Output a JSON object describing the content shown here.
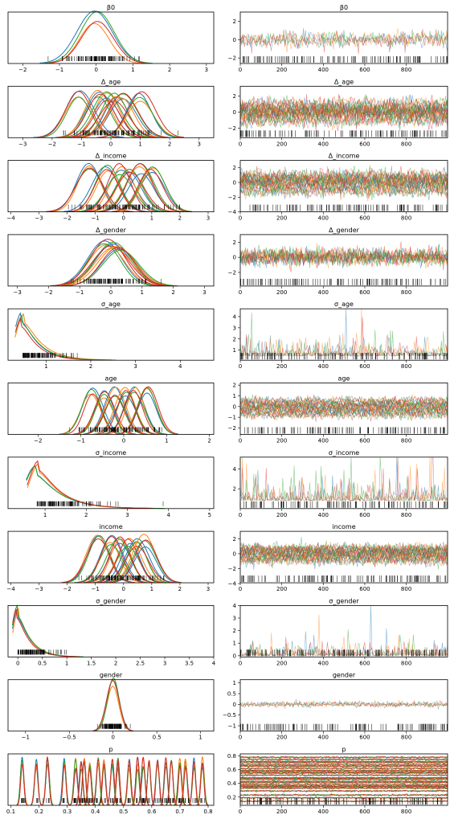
{
  "chart_data": {
    "type": "line",
    "title": "",
    "grid": false,
    "colors": [
      "#1f77b4",
      "#ff7f0e",
      "#2ca02c",
      "#d62728"
    ],
    "chains": 4,
    "draws_range": [
      0,
      999
    ],
    "trace_xticks": [
      0,
      200,
      400,
      600,
      800
    ],
    "rows": [
      {
        "name": "β0",
        "n": 1,
        "xlim": [
          -2.4,
          3.2
        ],
        "ylim": [
          0,
          0.46
        ],
        "xticks": [
          -2,
          -1,
          0,
          1,
          2,
          3
        ],
        "modes": [
          0.0
        ],
        "sd": 0.45,
        "trace_ylim": [
          -2.6,
          3.0
        ],
        "trace_yticks": [
          -2,
          0,
          2
        ],
        "skew": 0
      },
      {
        "name": "Δ_age",
        "n": 6,
        "xlim": [
          -3.5,
          3.5
        ],
        "ylim": [
          0,
          0.52
        ],
        "xticks": [
          -3,
          -2,
          -1,
          0,
          1,
          2,
          3
        ],
        "modes": [
          -1.1,
          -0.4,
          -0.1,
          0.15,
          0.4,
          1.0
        ],
        "sd": 0.45,
        "trace_ylim": [
          -3.2,
          3.2
        ],
        "trace_yticks": [
          -2,
          0,
          2
        ],
        "skew": 0
      },
      {
        "name": "Δ_income",
        "n": 6,
        "xlim": [
          -4.1,
          3.2
        ],
        "ylim": [
          0,
          0.52
        ],
        "xticks": [
          -4,
          -3,
          -2,
          -1,
          0,
          1,
          2,
          3
        ],
        "modes": [
          -1.2,
          -0.6,
          -0.1,
          0.2,
          0.6,
          1.0
        ],
        "sd": 0.45,
        "trace_ylim": [
          -4.0,
          3.0
        ],
        "trace_yticks": [
          -4,
          -2,
          0,
          2
        ],
        "skew": 0
      },
      {
        "name": "Δ_gender",
        "n": 3,
        "xlim": [
          -3.3,
          3.3
        ],
        "ylim": [
          0,
          0.46
        ],
        "xticks": [
          -3,
          -2,
          -1,
          0,
          1,
          2,
          3
        ],
        "modes": [
          -0.15,
          0.05,
          0.25
        ],
        "sd": 0.55,
        "trace_ylim": [
          -3.8,
          3.0
        ],
        "trace_yticks": [
          -2,
          0,
          2
        ],
        "skew": 0
      },
      {
        "name": "σ_age",
        "n": 1,
        "xlim": [
          0.15,
          4.75
        ],
        "ylim": [
          0,
          1.8
        ],
        "xticks": [
          1,
          2,
          3,
          4
        ],
        "modes": [
          0.48
        ],
        "sd": 0.32,
        "trace_ylim": [
          0.1,
          4.7
        ],
        "trace_yticks": [
          1,
          2,
          3,
          4
        ],
        "skew": 1
      },
      {
        "name": "age",
        "n": 6,
        "xlim": [
          -2.7,
          2.1
        ],
        "ylim": [
          0,
          0.86
        ],
        "xticks": [
          -2,
          -1,
          0,
          1,
          2
        ],
        "modes": [
          -0.75,
          -0.45,
          -0.2,
          0.05,
          0.25,
          0.55
        ],
        "sd": 0.22,
        "trace_ylim": [
          -2.6,
          2.2
        ],
        "trace_yticks": [
          -2,
          -1,
          0,
          1,
          2
        ],
        "skew": 0
      },
      {
        "name": "σ_income",
        "n": 1,
        "xlim": [
          0.1,
          5.1
        ],
        "ylim": [
          0,
          0.95
        ],
        "xticks": [
          1,
          2,
          3,
          4,
          5
        ],
        "modes": [
          0.8
        ],
        "sd": 0.5,
        "trace_ylim": [
          0.0,
          5.2
        ],
        "trace_yticks": [
          2,
          4
        ],
        "skew": 1
      },
      {
        "name": "income",
        "n": 6,
        "xlim": [
          -4.1,
          3.2
        ],
        "ylim": [
          0,
          0.62
        ],
        "xticks": [
          -4,
          -3,
          -2,
          -1,
          0,
          1,
          2,
          3
        ],
        "modes": [
          -0.9,
          -0.45,
          -0.15,
          0.2,
          0.5,
          0.75
        ],
        "sd": 0.38,
        "trace_ylim": [
          -3.9,
          3.0
        ],
        "trace_yticks": [
          -4,
          -2,
          0,
          2
        ],
        "skew": 0
      },
      {
        "name": "σ_gender",
        "n": 1,
        "xlim": [
          -0.2,
          4.0
        ],
        "ylim": [
          0,
          5.6
        ],
        "xticks": [
          0.0,
          0.5,
          1.0,
          1.5,
          2.0,
          2.5,
          3.0,
          3.5,
          4.0
        ],
        "modes": [
          0.0
        ],
        "sd": 0.22,
        "trace_ylim": [
          -0.1,
          4.0
        ],
        "trace_yticks": [
          0,
          1,
          2,
          3,
          4
        ],
        "skew": 2
      },
      {
        "name": "gender",
        "n": 1,
        "xlim": [
          -1.2,
          1.15
        ],
        "ylim": [
          0,
          6.3
        ],
        "xticks": [
          -1.0,
          -0.5,
          0.0,
          0.5,
          1.0
        ],
        "modes": [
          0.0
        ],
        "sd": 0.07,
        "trace_ylim": [
          -1.25,
          1.15
        ],
        "trace_yticks": [
          -1.0,
          -0.5,
          0.0,
          0.5,
          1.0
        ],
        "skew": 0
      },
      {
        "name": "p",
        "n": 24,
        "xlim": [
          0.09,
          0.82
        ],
        "ylim": [
          0,
          60
        ],
        "xticks": [
          0.1,
          0.2,
          0.3,
          0.4,
          0.5,
          0.6,
          0.7,
          0.8
        ],
        "modes": [
          0.14,
          0.19,
          0.23,
          0.29,
          0.33,
          0.35,
          0.38,
          0.41,
          0.43,
          0.46,
          0.48,
          0.52,
          0.55,
          0.57,
          0.59,
          0.62,
          0.65,
          0.67,
          0.7,
          0.72,
          0.75,
          0.78,
          0.48,
          0.36
        ],
        "sd": 0.006,
        "trace_ylim": [
          0.08,
          0.83
        ],
        "trace_yticks": [
          0.2,
          0.4,
          0.6,
          0.8
        ],
        "skew": 0
      }
    ]
  }
}
